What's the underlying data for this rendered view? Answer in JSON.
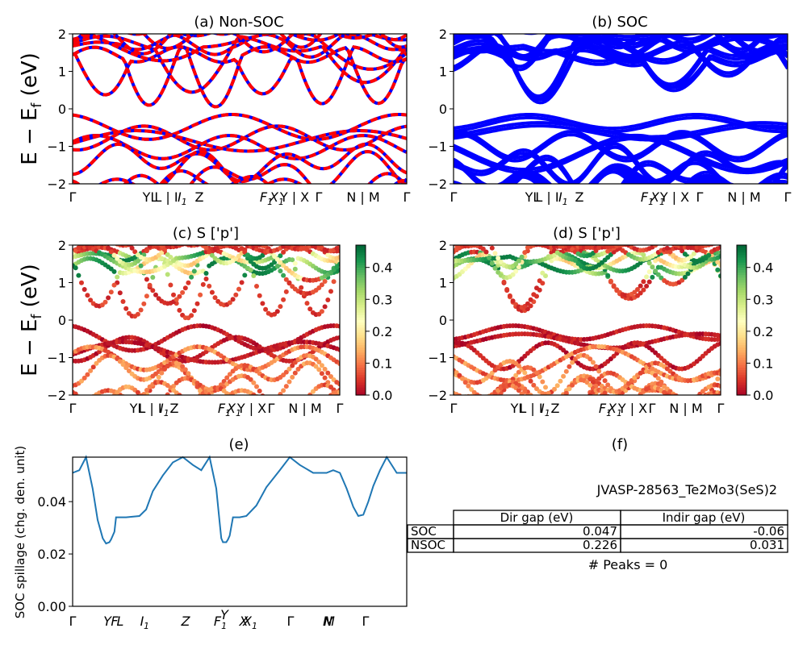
{
  "figure": {
    "ylabel_main": "E − E_f (eV)",
    "ylabel_spillage": "SOC spillage (chg. den. unit)",
    "colors": {
      "red": "#ff0000",
      "blue": "#0000ff",
      "spillage": "#1f77b4",
      "frame": "#000000"
    }
  },
  "chart_data": [
    {
      "id": "a",
      "type": "line",
      "title": "(a) Non-SOC",
      "ylim": [
        -2,
        2
      ],
      "yticks": [
        2,
        1,
        0,
        -1,
        -2
      ],
      "xticks": [
        "Γ",
        "Y|L",
        "L|I",
        "I1",
        "Z",
        "F1",
        "X1",
        "Y|X",
        "Γ",
        "N|M",
        "Γ"
      ],
      "series": [
        {
          "color": "#ff0000"
        },
        {
          "color": "#0000ff"
        }
      ]
    },
    {
      "id": "b",
      "type": "line",
      "title": "(b) SOC",
      "ylim": [
        -2,
        2
      ],
      "yticks": [
        2,
        1,
        0,
        -1,
        -2
      ],
      "xticks": [
        "Γ",
        "Y|L",
        "L|I",
        "I1",
        "Z",
        "F1",
        "X1",
        "Y|X",
        "Γ",
        "N|M",
        "Γ"
      ],
      "series": [
        {
          "color": "#0000ff"
        }
      ]
    },
    {
      "id": "c",
      "type": "scatter",
      "title": "(c)  S ['p']",
      "ylim": [
        -2,
        2
      ],
      "colorbar": {
        "range": [
          0.0,
          0.47
        ],
        "ticks": [
          "0.4",
          "0.3",
          "0.2",
          "0.1",
          "0.0"
        ],
        "cmap": "RdYlGn"
      }
    },
    {
      "id": "d",
      "type": "scatter",
      "title": "(d) S ['p']",
      "ylim": [
        -2,
        2
      ],
      "colorbar": {
        "range": [
          0.0,
          0.47
        ],
        "ticks": [
          "0.4",
          "0.3",
          "0.2",
          "0.1",
          "0.0"
        ],
        "cmap": "RdYlGn"
      }
    },
    {
      "id": "e",
      "type": "line",
      "title": "(e)",
      "ylabel": "SOC spillage (chg. den. unit)",
      "ylim": [
        0,
        0.057
      ],
      "yticks": [
        "0.04",
        "0.02",
        "0.00"
      ],
      "xticks": [
        "Γ",
        "Y",
        "F",
        "L",
        "I",
        "I1",
        "Z",
        "F1",
        "Y",
        "X",
        "X1",
        "Γ",
        "N",
        "M",
        "Γ"
      ],
      "x": [
        0,
        0.02,
        0.04,
        0.06,
        0.075,
        0.09,
        0.1,
        0.11,
        0.115,
        0.12,
        0.125,
        0.13,
        0.14,
        0.15,
        0.16,
        0.2,
        0.22,
        0.24,
        0.27,
        0.3,
        0.33,
        0.36,
        0.385,
        0.41,
        0.43,
        0.44,
        0.445,
        0.45,
        0.46,
        0.465,
        0.47,
        0.48,
        0.49,
        0.5,
        0.52,
        0.55,
        0.58,
        0.62,
        0.65,
        0.68,
        0.72,
        0.76,
        0.78,
        0.8,
        0.82,
        0.84,
        0.855,
        0.87,
        0.885,
        0.9,
        0.92,
        0.94,
        0.97,
        1.0
      ],
      "values": [
        0.051,
        0.052,
        0.057,
        0.045,
        0.033,
        0.026,
        0.024,
        0.0245,
        0.0255,
        0.027,
        0.0285,
        0.034,
        0.034,
        0.034,
        0.034,
        0.0345,
        0.037,
        0.044,
        0.05,
        0.055,
        0.057,
        0.054,
        0.052,
        0.057,
        0.045,
        0.032,
        0.026,
        0.0245,
        0.0245,
        0.0255,
        0.027,
        0.034,
        0.034,
        0.034,
        0.0345,
        0.0385,
        0.0455,
        0.052,
        0.057,
        0.054,
        0.051,
        0.051,
        0.052,
        0.051,
        0.045,
        0.038,
        0.0345,
        0.035,
        0.04,
        0.046,
        0.052,
        0.057,
        0.051,
        0.051
      ],
      "series": [
        {
          "color": "#1f77b4"
        }
      ]
    }
  ],
  "panel_f": {
    "title": "(f)",
    "material": "JVASP-28563_Te2Mo3(SeS)2",
    "table": {
      "headers": [
        "Dir gap (eV)",
        "Indir gap (eV)"
      ],
      "rows": [
        {
          "label": "SOC",
          "values": [
            "0.047",
            "-0.06"
          ]
        },
        {
          "label": "NSOC",
          "values": [
            "0.226",
            "0.031"
          ]
        }
      ]
    },
    "peaks": "# Peaks = 0"
  }
}
